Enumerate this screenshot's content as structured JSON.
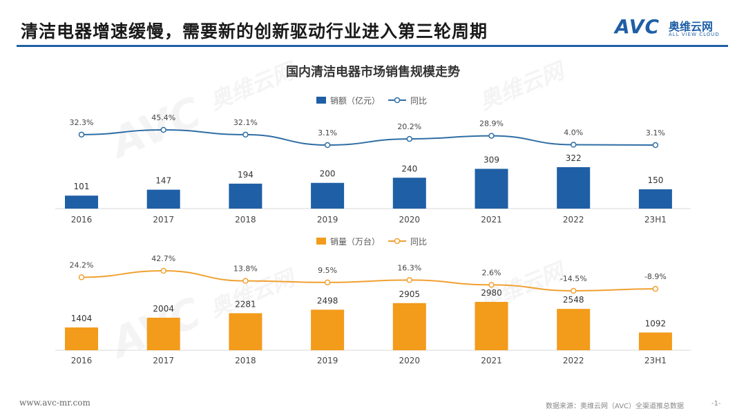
{
  "header": {
    "title": "清洁电器增速缓慢，需要新的创新驱动行业进入第三轮周期",
    "logo_brand": "AVC",
    "logo_cn": "奥维云网",
    "logo_en": "ALL VIEW CLOUD"
  },
  "watermark": {
    "brand": "AVC",
    "cn": "奥维云网",
    "en": "ALL VIEW CLOUD"
  },
  "footer": {
    "url": "www.avc-mr.com",
    "source": "数据来源：奥维云网（AVC）全渠道推总数据",
    "page": "-1-"
  },
  "colors": {
    "blue": "#1f5fa5",
    "orange": "#f39b1a",
    "line_blue": "#2e6da4",
    "line_orange": "#f0a030"
  },
  "chart_data": [
    {
      "type": "bar",
      "title": "国内清洁电器市场销售规模走势",
      "categories": [
        "2016",
        "2017",
        "2018",
        "2019",
        "2020",
        "2021",
        "2022",
        "23H1"
      ],
      "series": [
        {
          "name": "销额（亿元）",
          "kind": "bar",
          "values": [
            101,
            147,
            194,
            200,
            240,
            309,
            322,
            150
          ]
        },
        {
          "name": "同比",
          "kind": "line",
          "values": [
            32.3,
            45.4,
            32.1,
            3.1,
            20.2,
            28.9,
            4.0,
            3.1
          ],
          "labels": [
            "32.3%",
            "45.4%",
            "32.1%",
            "3.1%",
            "20.2%",
            "28.9%",
            "4.0%",
            "3.1%"
          ]
        }
      ],
      "legend": "top-center"
    },
    {
      "type": "bar",
      "categories": [
        "2016",
        "2017",
        "2018",
        "2019",
        "2020",
        "2021",
        "2022",
        "23H1"
      ],
      "series": [
        {
          "name": "销量（万台）",
          "kind": "bar",
          "values": [
            1404,
            2004,
            2281,
            2498,
            2905,
            2980,
            2548,
            1092
          ]
        },
        {
          "name": "同比",
          "kind": "line",
          "values": [
            24.2,
            42.7,
            13.8,
            9.5,
            16.3,
            2.6,
            -14.5,
            -8.9
          ],
          "labels": [
            "24.2%",
            "42.7%",
            "13.8%",
            "9.5%",
            "16.3%",
            "2.6%",
            "-14.5%",
            "-8.9%"
          ]
        }
      ],
      "legend": "top-center"
    }
  ]
}
